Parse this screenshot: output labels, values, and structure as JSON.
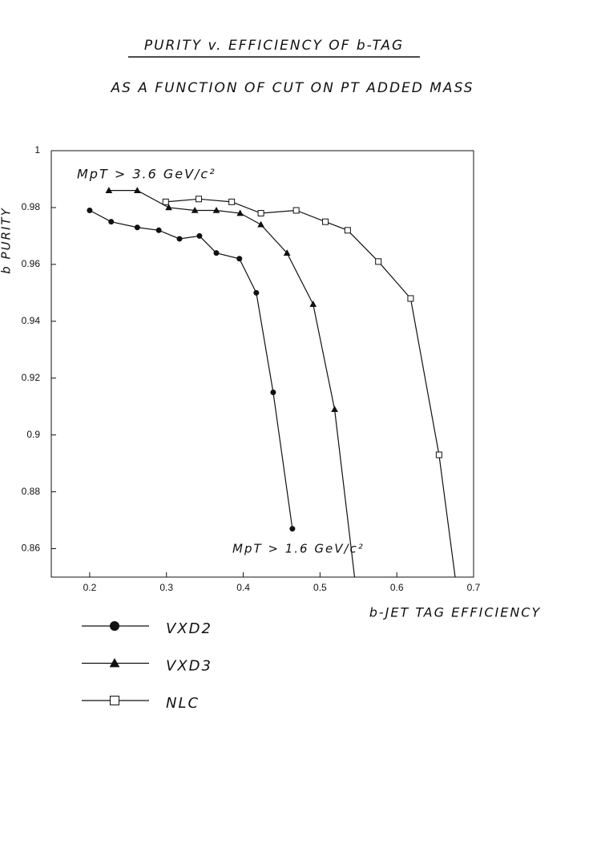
{
  "chart_data": {
    "type": "line",
    "title": "PURITY v. EFFICIENCY OF b-TAG",
    "subtitle": "AS A FUNCTION OF CUT ON PT ADDED MASS",
    "x_label": "b-JET TAG EFFICIENCY",
    "y_label": "b PURITY",
    "annotations": [
      "MpT > 3.6 GeV/c²",
      "MpT > 1.6 GeV/c²"
    ],
    "xlim": [
      0.15,
      0.7
    ],
    "xticks": [
      0.2,
      0.3,
      0.4,
      0.5,
      0.6,
      0.7
    ],
    "ylim": [
      0.85,
      1
    ],
    "yticks": [
      0.86,
      0.88,
      0.9,
      0.92,
      0.94,
      0.96,
      0.98,
      1
    ],
    "series": [
      {
        "name": "VXD2",
        "color": "#111111",
        "marker": "circle",
        "x": [
          0.2,
          0.228,
          0.262,
          0.29,
          0.317,
          0.343,
          0.365,
          0.395,
          0.417,
          0.439,
          0.464
        ],
        "values": [
          0.979,
          0.975,
          0.973,
          0.972,
          0.969,
          0.97,
          0.964,
          0.962,
          0.95,
          0.915,
          0.867
        ]
      },
      {
        "name": "VXD3",
        "color": "#111111",
        "marker": "triangle",
        "x": [
          0.225,
          0.262,
          0.303,
          0.337,
          0.365,
          0.396,
          0.423,
          0.457,
          0.491,
          0.519,
          0.545
        ],
        "values": [
          0.986,
          0.986,
          0.98,
          0.979,
          0.979,
          0.978,
          0.974,
          0.964,
          0.946,
          0.909,
          0.85
        ]
      },
      {
        "name": "NLC",
        "color": "#111111",
        "marker": "square",
        "x": [
          0.299,
          0.342,
          0.385,
          0.423,
          0.469,
          0.507,
          0.536,
          0.576,
          0.618,
          0.655,
          0.676
        ],
        "values": [
          0.982,
          0.983,
          0.982,
          0.978,
          0.979,
          0.975,
          0.972,
          0.961,
          0.948,
          0.893,
          0.85
        ]
      }
    ]
  }
}
